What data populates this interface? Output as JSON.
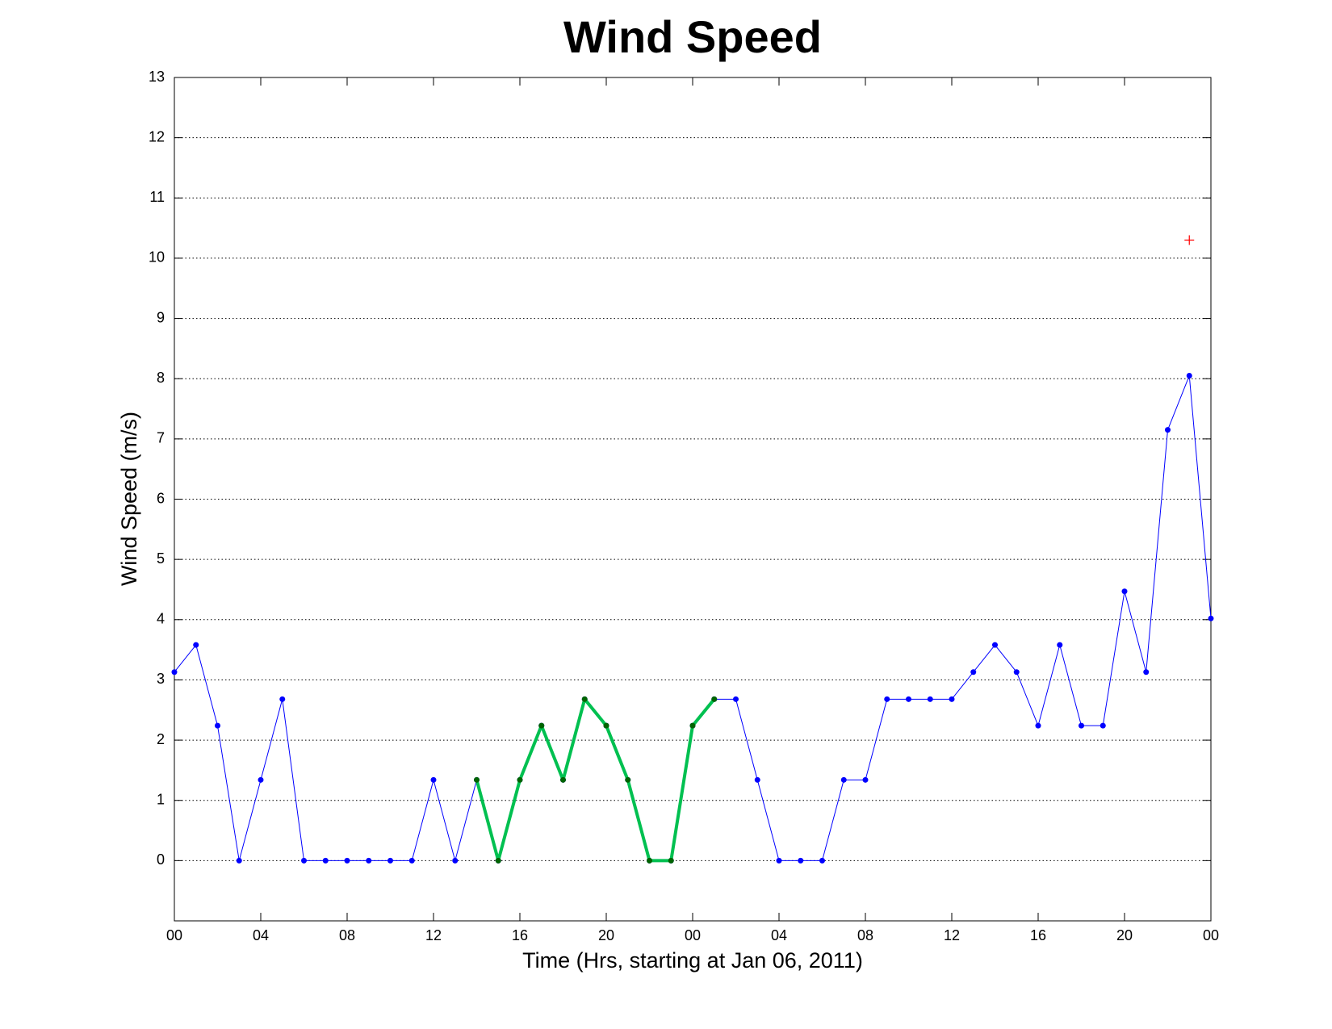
{
  "chart_data": {
    "type": "line",
    "title": "Wind Speed",
    "x_label": "Time (Hrs, starting at Jan 06, 2011)",
    "y_label": "Wind Speed (m/s)",
    "x": [
      0,
      1,
      2,
      3,
      4,
      5,
      6,
      7,
      8,
      9,
      10,
      11,
      12,
      13,
      14,
      15,
      16,
      17,
      18,
      19,
      20,
      21,
      22,
      23,
      24,
      25,
      26,
      27,
      28,
      29,
      30,
      31,
      32,
      33,
      34,
      35,
      36,
      37,
      38,
      39,
      40,
      41,
      42,
      43,
      44,
      45,
      46,
      47,
      48
    ],
    "series": [
      {
        "color": "#0000ff",
        "marker_color": "#0000ff",
        "marker": "dot",
        "line_width": 1,
        "values": [
          3.13,
          3.58,
          2.24,
          0,
          1.34,
          2.68,
          0,
          0,
          0,
          0,
          0,
          0,
          1.34,
          0,
          1.34,
          0,
          1.34,
          2.24,
          1.34,
          2.68,
          2.24,
          1.34,
          0,
          0,
          2.24,
          2.68,
          2.68,
          1.34,
          0,
          0,
          0,
          1.34,
          1.34,
          2.68,
          2.68,
          2.68,
          2.68,
          3.13,
          3.58,
          3.13,
          2.24,
          3.58,
          2.24,
          2.24,
          4.47,
          3.13,
          7.15,
          8.05,
          4.02
        ]
      },
      {
        "color": "#00c050",
        "marker_color": "#006400",
        "marker": "dot",
        "line_width": 4,
        "values": [
          null,
          null,
          null,
          null,
          null,
          null,
          null,
          null,
          null,
          null,
          null,
          null,
          null,
          null,
          1.34,
          0,
          1.34,
          2.24,
          1.34,
          2.68,
          2.24,
          1.34,
          0,
          0,
          2.24,
          2.68,
          null,
          null,
          null,
          null,
          null,
          null,
          null,
          null,
          null,
          null,
          null,
          null,
          null,
          null,
          null,
          null,
          null,
          null,
          null,
          null,
          null,
          null,
          null
        ]
      },
      {
        "color": "#ff0000",
        "marker_color": "#ff0000",
        "marker": "plus",
        "line_width": 0,
        "values": [
          null,
          null,
          null,
          null,
          null,
          null,
          null,
          null,
          null,
          null,
          null,
          null,
          null,
          null,
          null,
          null,
          null,
          null,
          null,
          null,
          null,
          null,
          null,
          null,
          null,
          null,
          null,
          null,
          null,
          null,
          null,
          null,
          null,
          null,
          null,
          null,
          null,
          null,
          null,
          null,
          null,
          null,
          null,
          null,
          null,
          null,
          null,
          10.3,
          null
        ]
      }
    ],
    "xlim": [
      0,
      48
    ],
    "xticks": [
      {
        "value": 0,
        "label": "00"
      },
      {
        "value": 4,
        "label": "04"
      },
      {
        "value": 8,
        "label": "08"
      },
      {
        "value": 12,
        "label": "12"
      },
      {
        "value": 16,
        "label": "16"
      },
      {
        "value": 20,
        "label": "20"
      },
      {
        "value": 24,
        "label": "00"
      },
      {
        "value": 28,
        "label": "04"
      },
      {
        "value": 32,
        "label": "08"
      },
      {
        "value": 36,
        "label": "12"
      },
      {
        "value": 40,
        "label": "16"
      },
      {
        "value": 44,
        "label": "20"
      },
      {
        "value": 48,
        "label": "00"
      }
    ],
    "ylim": [
      -1,
      13
    ],
    "yticks": [
      0,
      1,
      2,
      3,
      4,
      5,
      6,
      7,
      8,
      9,
      10,
      11,
      12,
      13
    ],
    "grid": true
  }
}
